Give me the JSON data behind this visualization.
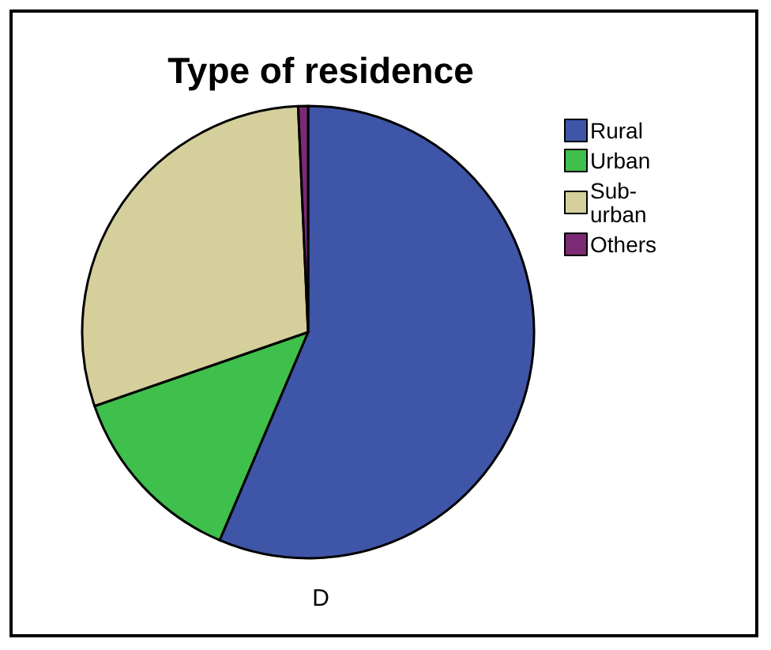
{
  "chart_data": {
    "type": "pie",
    "title": "Type of residence",
    "categories": [
      "Rural",
      "Urban",
      "Sub-urban",
      "Others"
    ],
    "values": [
      56.4,
      13.3,
      29.6,
      0.7
    ],
    "colors": [
      "#3f55a8",
      "#3fbf4c",
      "#d5cf9c",
      "#7b2b73"
    ],
    "legend": "top right",
    "annotations": [
      "D"
    ]
  }
}
